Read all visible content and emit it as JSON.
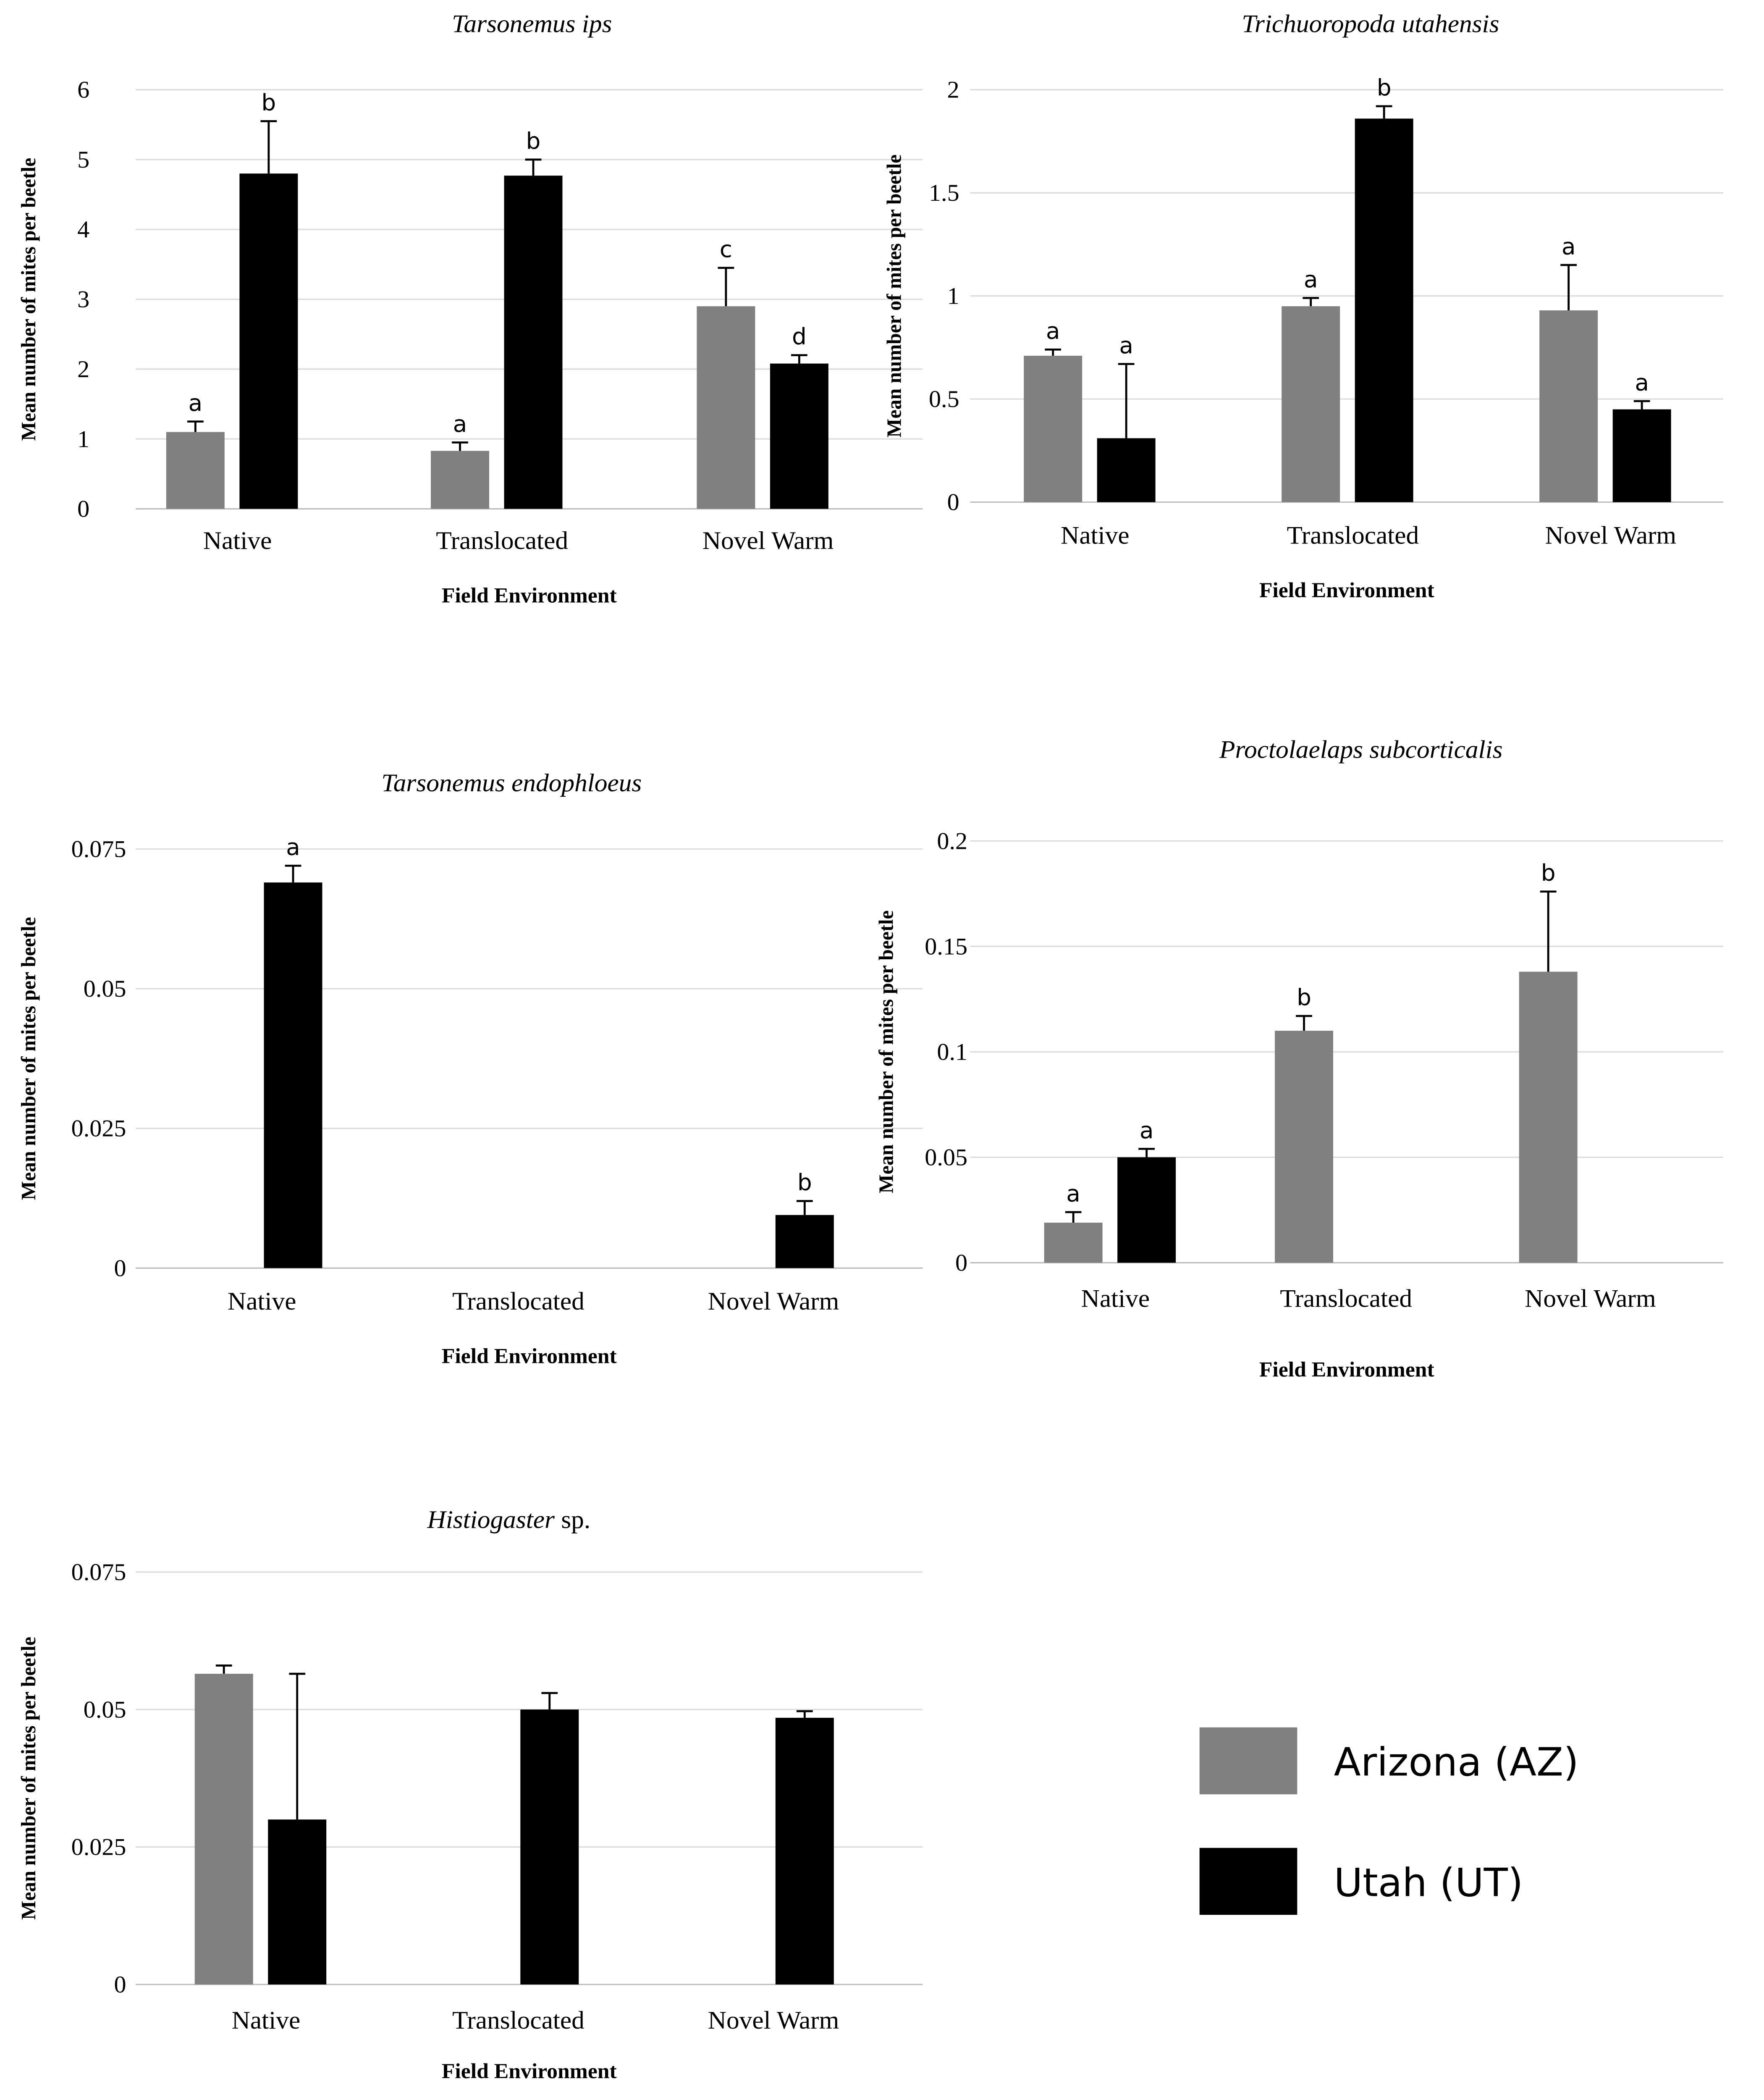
{
  "legend": [
    {
      "label": "Arizona (AZ)",
      "color": "#808080"
    },
    {
      "label": "Utah (UT)",
      "color": "#000000"
    }
  ],
  "chart_data": [
    {
      "type": "bar",
      "title": "Tarsonemus ips",
      "xlabel": "Field Environment",
      "ylabel": "Mean number of mites per beetle",
      "categories": [
        "Native",
        "Translocated",
        "Novel Warm"
      ],
      "ylim": [
        0,
        6
      ],
      "yticks": [
        "0",
        "1",
        "2",
        "3",
        "4",
        "5",
        "6"
      ],
      "ytick_values": [
        0,
        1,
        2,
        3,
        4,
        5,
        6
      ],
      "series": [
        {
          "name": "Arizona (AZ)",
          "values": [
            1.1,
            0.83,
            2.9
          ],
          "error_top": [
            1.25,
            0.95,
            3.45
          ],
          "letters": [
            "a",
            "a",
            "c"
          ]
        },
        {
          "name": "Utah (UT)",
          "values": [
            4.8,
            4.77,
            2.08
          ],
          "error_top": [
            5.55,
            5.0,
            2.2
          ],
          "letters": [
            "b",
            "b",
            "d"
          ]
        }
      ]
    },
    {
      "type": "bar",
      "title": "Trichuoropoda utahensis",
      "xlabel": "Field Environment",
      "ylabel": "Mean number of mites per beetle",
      "categories": [
        "Native",
        "Translocated",
        "Novel Warm"
      ],
      "ylim": [
        0,
        2
      ],
      "yticks": [
        "0",
        "0.5",
        "1",
        "1.5",
        "2"
      ],
      "ytick_values": [
        0,
        0.5,
        1,
        1.5,
        2
      ],
      "series": [
        {
          "name": "Arizona (AZ)",
          "values": [
            0.71,
            0.95,
            0.93
          ],
          "error_top": [
            0.74,
            0.99,
            1.15
          ],
          "letters": [
            "a",
            "a",
            "a"
          ]
        },
        {
          "name": "Utah (UT)",
          "values": [
            0.31,
            1.86,
            0.45
          ],
          "error_top": [
            0.67,
            1.92,
            0.49
          ],
          "letters": [
            "a",
            "b",
            "a"
          ]
        }
      ]
    },
    {
      "type": "bar",
      "title": "Tarsonemus endophloeus",
      "xlabel": "Field Environment",
      "ylabel": "Mean number of mites per beetle",
      "categories": [
        "Native",
        "Translocated",
        "Novel Warm"
      ],
      "ylim": [
        0,
        0.075
      ],
      "yticks": [
        "0",
        "0.025",
        "0.05",
        "0.075"
      ],
      "ytick_values": [
        0,
        0.025,
        0.05,
        0.075
      ],
      "series": [
        {
          "name": "Arizona (AZ)",
          "values": [
            null,
            null,
            null
          ],
          "error_top": [
            null,
            null,
            null
          ],
          "letters": [
            "",
            "",
            ""
          ]
        },
        {
          "name": "Utah (UT)",
          "values": [
            0.069,
            null,
            0.0095
          ],
          "error_top": [
            0.072,
            null,
            0.012
          ],
          "letters": [
            "a",
            "",
            "b"
          ]
        }
      ]
    },
    {
      "type": "bar",
      "title": "Proctolaelaps subcorticalis",
      "xlabel": "Field Environment",
      "ylabel": "Mean number of mites per beetle",
      "categories": [
        "Native",
        "Translocated",
        "Novel Warm"
      ],
      "ylim": [
        0,
        0.2
      ],
      "yticks": [
        "0",
        "0.05",
        "0.1",
        "0.15",
        "0.2"
      ],
      "ytick_values": [
        0,
        0.05,
        0.1,
        0.15,
        0.2
      ],
      "series": [
        {
          "name": "Arizona (AZ)",
          "values": [
            0.019,
            0.11,
            0.138
          ],
          "error_top": [
            0.024,
            0.117,
            0.176
          ],
          "letters": [
            "a",
            "b",
            "b"
          ]
        },
        {
          "name": "Utah (UT)",
          "values": [
            0.05,
            null,
            null
          ],
          "error_top": [
            0.054,
            null,
            null
          ],
          "letters": [
            "a",
            "",
            ""
          ]
        }
      ]
    },
    {
      "type": "bar",
      "title": "Histiogaster",
      "title_suffix": " sp.",
      "xlabel": "Field Environment",
      "ylabel": "Mean number of mites per beetle",
      "categories": [
        "Native",
        "Translocated",
        "Novel Warm"
      ],
      "ylim": [
        0,
        0.075
      ],
      "yticks": [
        "0",
        "0.025",
        "0.05",
        "0.075"
      ],
      "ytick_values": [
        0,
        0.025,
        0.05,
        0.075
      ],
      "series": [
        {
          "name": "Arizona (AZ)",
          "values": [
            0.0565,
            null,
            null
          ],
          "error_top": [
            0.058,
            null,
            null
          ],
          "letters": [
            "",
            "",
            ""
          ]
        },
        {
          "name": "Utah (UT)",
          "values": [
            0.03,
            0.05,
            0.0485
          ],
          "error_top": [
            0.0565,
            0.053,
            0.0497
          ],
          "letters": [
            "",
            "",
            ""
          ]
        }
      ]
    }
  ]
}
